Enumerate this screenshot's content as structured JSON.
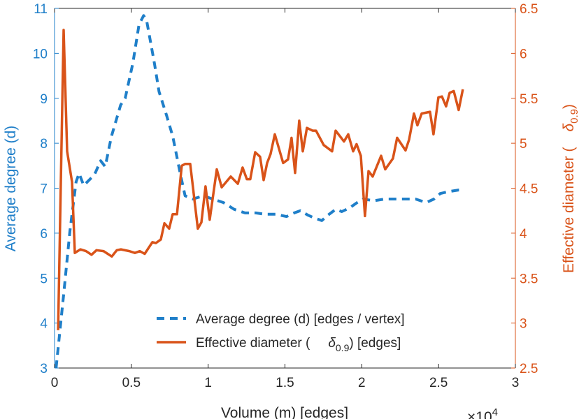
{
  "chart_data": {
    "type": "line",
    "xlabel": "Volume (m) [edges]",
    "x_multiplier": "×10",
    "x_multiplier_exp": "4",
    "xlim": [
      0,
      3
    ],
    "xticks": [
      "0",
      "0.5",
      "1",
      "1.5",
      "2",
      "2.5",
      "3"
    ],
    "xtick_values": [
      0,
      0.5,
      1,
      1.5,
      2,
      2.5,
      3
    ],
    "left_axis": {
      "label": "Average degree (d)",
      "ylim": [
        3,
        11
      ],
      "ticks": [
        "3",
        "4",
        "5",
        "6",
        "7",
        "8",
        "9",
        "10",
        "11"
      ],
      "tick_values": [
        3,
        4,
        5,
        6,
        7,
        8,
        9,
        10,
        11
      ],
      "color": "#1f7fc9"
    },
    "right_axis": {
      "label": "Effective diameter (",
      "label_symbol": "δ",
      "label_sub": "0.9",
      "label_end": ")",
      "ylim": [
        2.5,
        6.5
      ],
      "ticks": [
        "2.5",
        "3",
        "3.5",
        "4",
        "4.5",
        "5",
        "5.5",
        "6",
        "6.5"
      ],
      "tick_values": [
        2.5,
        3,
        3.5,
        4,
        4.5,
        5,
        5.5,
        6,
        6.5
      ],
      "color": "#d95319"
    },
    "legend_position": "bottom-center",
    "series": [
      {
        "name": "Average degree (d) [edges / vertex]",
        "axis": "left",
        "style": "dashed",
        "color": "#1f7fc9",
        "x": [
          0.01,
          0.06,
          0.1,
          0.14,
          0.16,
          0.19,
          0.26,
          0.3,
          0.33,
          0.37,
          0.43,
          0.46,
          0.51,
          0.55,
          0.58,
          0.6,
          0.65,
          0.68,
          0.73,
          0.77,
          0.82,
          0.85,
          0.9,
          0.97,
          1.03,
          1.1,
          1.17,
          1.24,
          1.31,
          1.37,
          1.44,
          1.51,
          1.56,
          1.6,
          1.65,
          1.69,
          1.74,
          1.78,
          1.83,
          1.87,
          1.92,
          1.97,
          2.01,
          2.08,
          2.15,
          2.22,
          2.28,
          2.35,
          2.42,
          2.47,
          2.51,
          2.56,
          2.63,
          2.65
        ],
        "y": [
          3.0,
          4.66,
          6.05,
          7.14,
          7.33,
          7.06,
          7.3,
          7.61,
          7.48,
          8.15,
          8.85,
          9.0,
          9.78,
          10.64,
          10.84,
          10.72,
          9.78,
          9.15,
          8.61,
          8.15,
          7.3,
          6.83,
          6.76,
          6.83,
          6.76,
          6.68,
          6.53,
          6.45,
          6.45,
          6.42,
          6.42,
          6.37,
          6.45,
          6.5,
          6.4,
          6.34,
          6.28,
          6.4,
          6.53,
          6.48,
          6.56,
          6.68,
          6.76,
          6.72,
          6.76,
          6.76,
          6.76,
          6.76,
          6.68,
          6.76,
          6.88,
          6.92,
          6.96,
          6.96
        ]
      },
      {
        "name": "Effective diameter (",
        "name_symbol": "δ",
        "name_sub": "0.9",
        "name_end": ") [edges]",
        "axis": "right",
        "style": "solid",
        "color": "#d95319",
        "x": [
          0.023,
          0.059,
          0.082,
          0.114,
          0.132,
          0.168,
          0.205,
          0.241,
          0.273,
          0.319,
          0.373,
          0.405,
          0.432,
          0.487,
          0.523,
          0.555,
          0.587,
          0.637,
          0.66,
          0.692,
          0.715,
          0.746,
          0.769,
          0.797,
          0.828,
          0.851,
          0.883,
          0.933,
          0.956,
          0.983,
          1.01,
          1.056,
          1.088,
          1.147,
          1.193,
          1.224,
          1.252,
          1.274,
          1.306,
          1.338,
          1.361,
          1.384,
          1.406,
          1.434,
          1.488,
          1.52,
          1.543,
          1.566,
          1.593,
          1.616,
          1.643,
          1.68,
          1.702,
          1.752,
          1.807,
          1.83,
          1.884,
          1.912,
          1.944,
          1.966,
          1.994,
          2.021,
          2.044,
          2.071,
          2.126,
          2.153,
          2.203,
          2.23,
          2.285,
          2.308,
          2.34,
          2.362,
          2.39,
          2.444,
          2.467,
          2.499,
          2.522,
          2.549,
          2.572,
          2.599,
          2.631,
          2.658
        ],
        "y": [
          2.92,
          6.26,
          4.91,
          4.57,
          3.78,
          3.82,
          3.8,
          3.76,
          3.81,
          3.8,
          3.74,
          3.81,
          3.82,
          3.8,
          3.78,
          3.8,
          3.77,
          3.9,
          3.89,
          3.93,
          4.11,
          4.05,
          4.21,
          4.21,
          4.75,
          4.77,
          4.77,
          4.05,
          4.12,
          4.52,
          4.15,
          4.71,
          4.51,
          4.63,
          4.55,
          4.73,
          4.6,
          4.6,
          4.9,
          4.85,
          4.59,
          4.78,
          4.88,
          5.1,
          4.78,
          4.82,
          5.06,
          4.67,
          5.25,
          4.91,
          5.17,
          5.14,
          5.14,
          4.98,
          4.91,
          5.14,
          5.02,
          5.1,
          4.91,
          4.99,
          4.86,
          4.19,
          4.69,
          4.63,
          4.86,
          4.71,
          4.83,
          5.06,
          4.92,
          5.04,
          5.33,
          5.2,
          5.33,
          5.35,
          5.1,
          5.51,
          5.52,
          5.41,
          5.56,
          5.58,
          5.37,
          5.6
        ]
      }
    ]
  }
}
